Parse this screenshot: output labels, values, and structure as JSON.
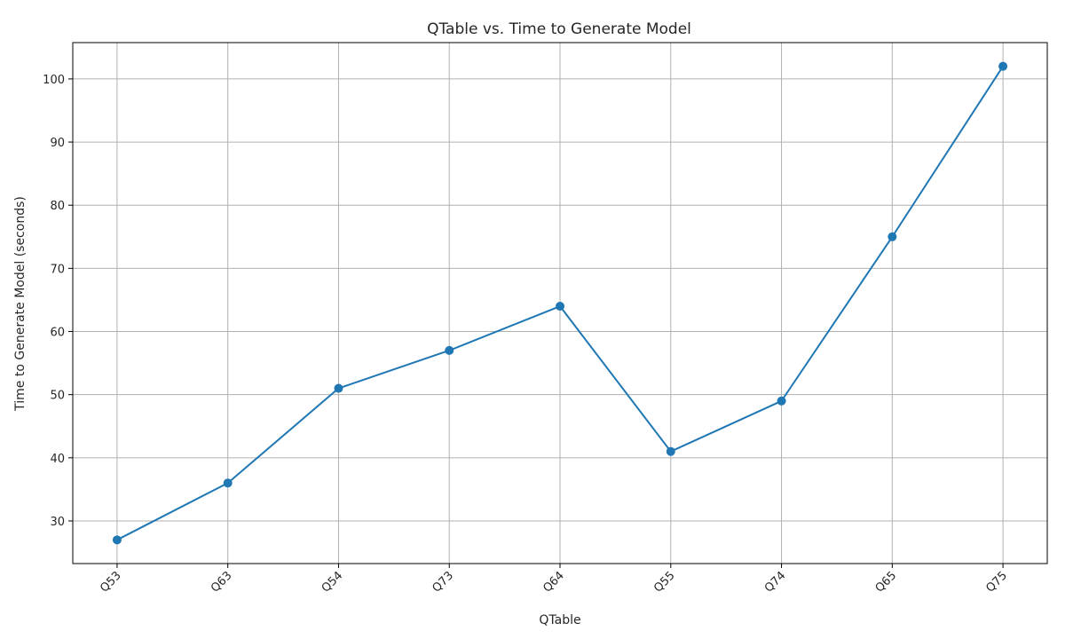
{
  "chart_data": {
    "type": "line",
    "title": "QTable vs. Time to Generate Model",
    "xlabel": "QTable",
    "ylabel": "Time to Generate Model (seconds)",
    "categories": [
      "Q53",
      "Q63",
      "Q54",
      "Q73",
      "Q64",
      "Q55",
      "Q74",
      "Q65",
      "Q75"
    ],
    "series": [
      {
        "values": [
          27,
          36,
          51,
          57,
          64,
          41,
          49,
          75,
          102
        ]
      }
    ],
    "ylim": [
      23.25,
      105.75
    ],
    "yticks": [
      30,
      40,
      50,
      60,
      70,
      80,
      90,
      100
    ],
    "grid": true,
    "marker": "circle",
    "xtick_rotation": -45,
    "colors": {
      "line": "#1f77b4",
      "grid": "#b0b0b0",
      "axes": "#000000"
    }
  }
}
